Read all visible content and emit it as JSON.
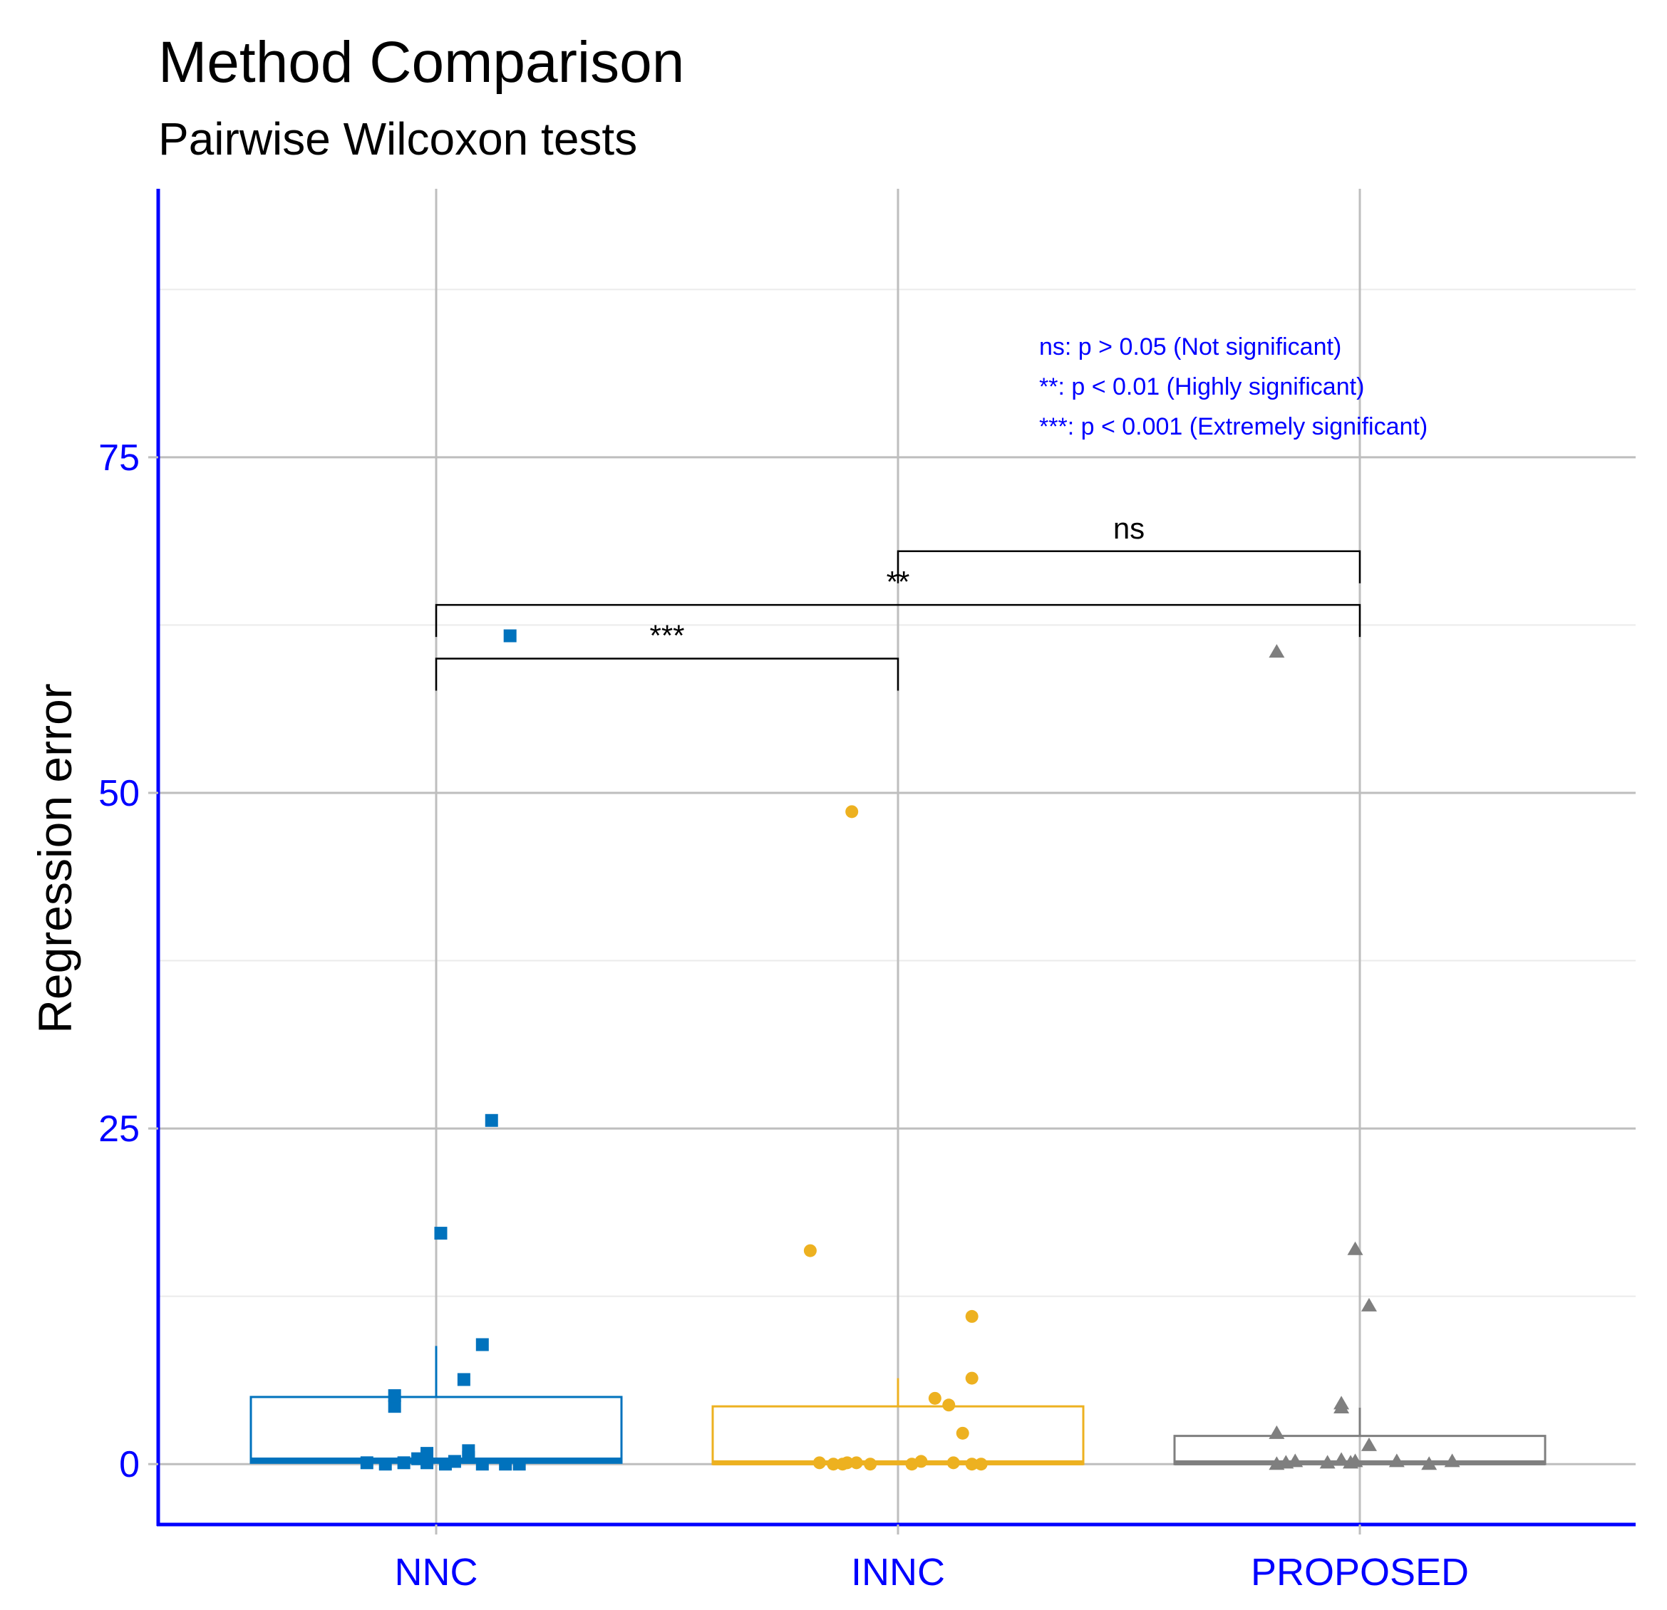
{
  "chart_data": {
    "type": "box",
    "title": "Method Comparison",
    "subtitle": "Pairwise Wilcoxon tests",
    "xlabel": "",
    "ylabel": "Regression error",
    "ylim": [
      -4.5,
      95
    ],
    "yticks": [
      0,
      25,
      50,
      75
    ],
    "ytick_labels": [
      "0",
      "25",
      "50",
      "75"
    ],
    "grid": true,
    "categories": [
      "NNC",
      "INNC",
      "PROPOSED"
    ],
    "series": [
      {
        "name": "NNC",
        "color": "#0072BD",
        "marker": "square",
        "box": {
          "min": 0,
          "q1": 0.1,
          "median": 0.3,
          "q3": 5.0,
          "whisker_high": 8.8
        },
        "points": [
          {
            "x": -0.15,
            "y": 0.1
          },
          {
            "x": -0.11,
            "y": 0.0
          },
          {
            "x": -0.07,
            "y": 0.1
          },
          {
            "x": -0.04,
            "y": 0.4
          },
          {
            "x": -0.02,
            "y": 0.8
          },
          {
            "x": -0.02,
            "y": 0.1
          },
          {
            "x": 0.02,
            "y": 0.0
          },
          {
            "x": 0.04,
            "y": 0.2
          },
          {
            "x": 0.07,
            "y": 0.5
          },
          {
            "x": 0.07,
            "y": 1.0
          },
          {
            "x": 0.1,
            "y": 0.0
          },
          {
            "x": 0.15,
            "y": 0.0
          },
          {
            "x": 0.18,
            "y": 0.0
          },
          {
            "x": -0.09,
            "y": 4.3
          },
          {
            "x": -0.09,
            "y": 5.1
          },
          {
            "x": 0.06,
            "y": 6.3
          },
          {
            "x": 0.1,
            "y": 8.9
          },
          {
            "x": 0.01,
            "y": 17.2
          },
          {
            "x": 0.12,
            "y": 25.6
          },
          {
            "x": 0.16,
            "y": 61.7
          }
        ]
      },
      {
        "name": "INNC",
        "color": "#EDB120",
        "marker": "circle",
        "box": {
          "min": 0,
          "q1": 0.0,
          "median": 0.1,
          "q3": 4.3,
          "whisker_high": 6.4
        },
        "points": [
          {
            "x": -0.17,
            "y": 0.1
          },
          {
            "x": -0.14,
            "y": 0.0
          },
          {
            "x": -0.12,
            "y": 0.0
          },
          {
            "x": -0.11,
            "y": 0.1
          },
          {
            "x": -0.09,
            "y": 0.1
          },
          {
            "x": -0.06,
            "y": 0.0
          },
          {
            "x": 0.03,
            "y": 0.0
          },
          {
            "x": 0.05,
            "y": 0.2
          },
          {
            "x": 0.12,
            "y": 0.1
          },
          {
            "x": 0.16,
            "y": 0.0
          },
          {
            "x": 0.18,
            "y": 0.0
          },
          {
            "x": 0.14,
            "y": 2.3
          },
          {
            "x": 0.11,
            "y": 4.4
          },
          {
            "x": 0.08,
            "y": 4.9
          },
          {
            "x": 0.16,
            "y": 6.4
          },
          {
            "x": 0.16,
            "y": 11.0
          },
          {
            "x": -0.19,
            "y": 15.9
          },
          {
            "x": -0.1,
            "y": 48.6
          }
        ]
      },
      {
        "name": "PROPOSED",
        "color": "#7F7F7F",
        "marker": "triangle",
        "box": {
          "min": 0,
          "q1": 0.0,
          "median": 0.1,
          "q3": 2.1,
          "whisker_high": 4.2
        },
        "points": [
          {
            "x": -0.18,
            "y": 0.0
          },
          {
            "x": -0.16,
            "y": 0.1
          },
          {
            "x": -0.14,
            "y": 0.2
          },
          {
            "x": -0.07,
            "y": 0.1
          },
          {
            "x": -0.04,
            "y": 0.3
          },
          {
            "x": -0.02,
            "y": 0.1
          },
          {
            "x": -0.01,
            "y": 0.2
          },
          {
            "x": 0.08,
            "y": 0.2
          },
          {
            "x": 0.15,
            "y": 0.0
          },
          {
            "x": 0.2,
            "y": 0.2
          },
          {
            "x": -0.18,
            "y": 2.3
          },
          {
            "x": -0.04,
            "y": 4.2
          },
          {
            "x": -0.04,
            "y": 4.5
          },
          {
            "x": 0.02,
            "y": 1.4
          },
          {
            "x": -0.01,
            "y": 16.0
          },
          {
            "x": 0.02,
            "y": 11.8
          },
          {
            "x": -0.18,
            "y": 60.5
          }
        ]
      }
    ],
    "comparisons": [
      {
        "from": "NNC",
        "to": "INNC",
        "label": "***",
        "y": 60.0
      },
      {
        "from": "NNC",
        "to": "PROPOSED",
        "label": "**",
        "y": 64.0
      },
      {
        "from": "INNC",
        "to": "PROPOSED",
        "label": "ns",
        "y": 68.0
      }
    ],
    "annotations": [
      "ns: p > 0.05 (Not significant)",
      "**: p < 0.01 (Highly significant)",
      "***: p < 0.001  (Extremely significant)"
    ],
    "colors": {
      "axis": "#0000FF",
      "tick_text": "#0000FF",
      "grid_major": "#BEBEBE",
      "grid_minor": "#EBEBEB",
      "bracket": "#000000"
    }
  }
}
